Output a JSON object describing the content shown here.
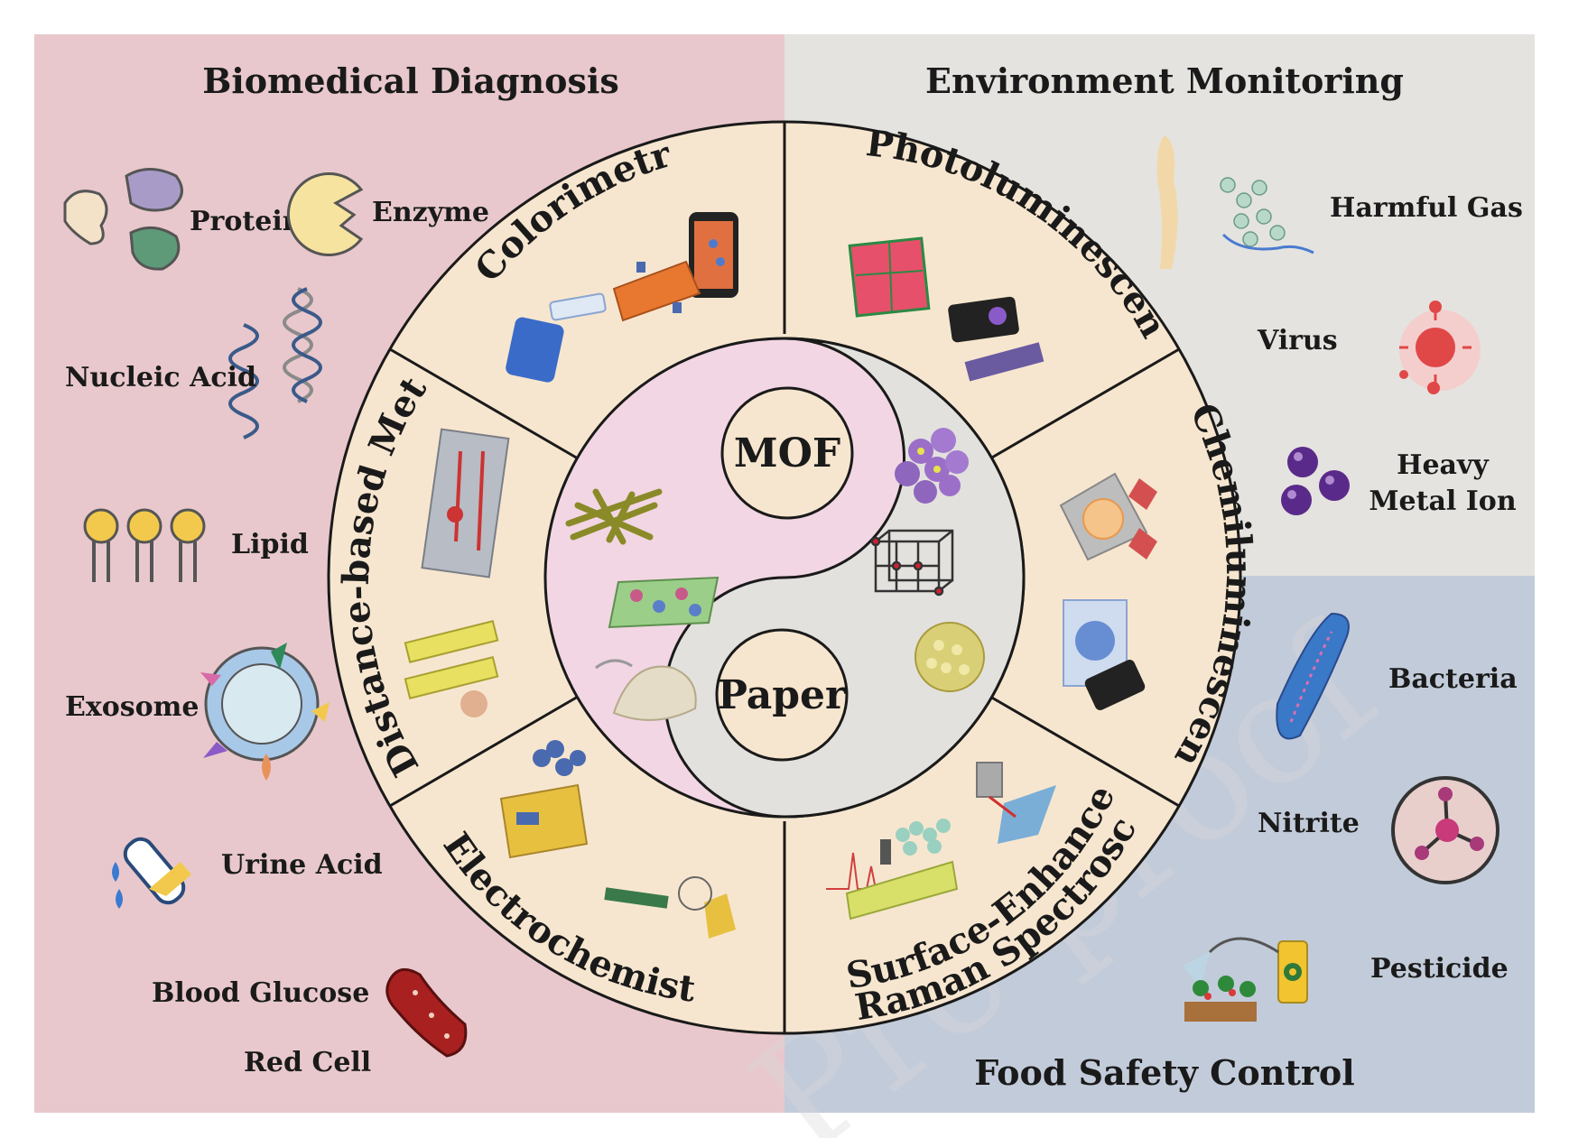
{
  "quadrants": {
    "biomedical": {
      "title": "Biomedical Diagnosis",
      "color": "#e8c8cc"
    },
    "environment": {
      "title": "Environment Monitoring",
      "color": "#e4e3df"
    },
    "food": {
      "title": "Food Safety Control",
      "color": "#c2cbd9"
    }
  },
  "biomedical_items": [
    {
      "label": "Protein",
      "icon": "protein-blobs-icon"
    },
    {
      "label": "Enzyme",
      "icon": "enzyme-pacman-icon"
    },
    {
      "label": "Nucleic Acid",
      "icon": "dna-helix-icon"
    },
    {
      "label": "Lipid",
      "icon": "lipid-bilayer-icon"
    },
    {
      "label": "Exosome",
      "icon": "exosome-icon"
    },
    {
      "label": "Urine Acid",
      "icon": "test-tube-icon"
    },
    {
      "label": "Blood Glucose",
      "icon": ""
    },
    {
      "label": "Red Cell",
      "icon": "red-blood-cell-icon"
    }
  ],
  "environment_items": [
    {
      "label": "Harmful Gas",
      "icon": "gas-cloud-icon"
    },
    {
      "label": "Virus",
      "icon": "virus-icon"
    },
    {
      "label": "Heavy",
      "label2": "Metal Ion",
      "icon": "metal-ion-spheres-icon"
    }
  ],
  "food_items": [
    {
      "label": "Bacteria",
      "icon": "bacteria-rod-icon"
    },
    {
      "label": "Nitrite",
      "icon": "nitrite-molecule-icon"
    },
    {
      "label": "Pesticide",
      "icon": "pesticide-sprayer-icon"
    }
  ],
  "methods": [
    "Colorimetry",
    "Photoluminescence",
    "Chemiluminescence",
    "Surface-Enhanced",
    "Raman Spectroscopy",
    "Electrochemistry",
    "Distance-based Method"
  ],
  "core": {
    "mof": "MOF",
    "paper": "Paper"
  },
  "watermark": "Pre-proof",
  "colors": {
    "ring": "#f7e6cf",
    "mof_half": "#e2e1dd",
    "paper_half": "#f2d6e3",
    "outline": "#1a1a1a"
  }
}
